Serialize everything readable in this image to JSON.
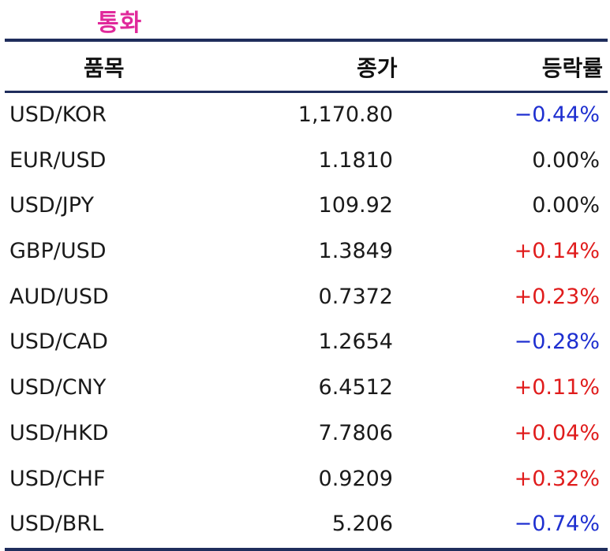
{
  "title": "통화",
  "header": {
    "item": "품목",
    "close": "종가",
    "change": "등락률"
  },
  "colors": {
    "title": "#e0299b",
    "rule": "#1f2d5c",
    "negative": "#1e2fd0",
    "positive": "#e01c1c",
    "neutral": "#1a1a1a"
  },
  "rows": [
    {
      "item": "USD/KOR",
      "close": "1,170.80",
      "change": "−0.44%",
      "dir": "neg"
    },
    {
      "item": "EUR/USD",
      "close": "1.1810",
      "change": "0.00%",
      "dir": "zero"
    },
    {
      "item": "USD/JPY",
      "close": "109.92",
      "change": "0.00%",
      "dir": "zero"
    },
    {
      "item": "GBP/USD",
      "close": "1.3849",
      "change": "+0.14%",
      "dir": "pos"
    },
    {
      "item": "AUD/USD",
      "close": "0.7372",
      "change": "+0.23%",
      "dir": "pos"
    },
    {
      "item": "USD/CAD",
      "close": "1.2654",
      "change": "−0.28%",
      "dir": "neg"
    },
    {
      "item": "USD/CNY",
      "close": "6.4512",
      "change": "+0.11%",
      "dir": "pos"
    },
    {
      "item": "USD/HKD",
      "close": "7.7806",
      "change": "+0.04%",
      "dir": "pos"
    },
    {
      "item": "USD/CHF",
      "close": "0.9209",
      "change": "+0.32%",
      "dir": "pos"
    },
    {
      "item": "USD/BRL",
      "close": "5.206",
      "change": "−0.74%",
      "dir": "neg"
    }
  ]
}
